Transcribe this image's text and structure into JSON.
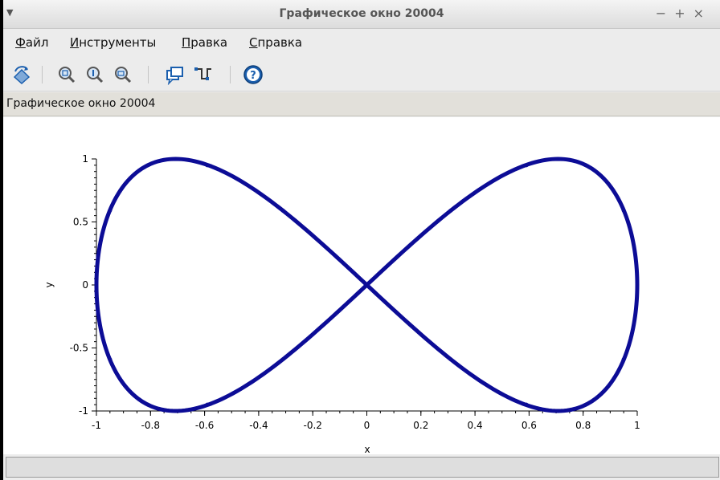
{
  "window": {
    "title": "Графическое окно 20004"
  },
  "menu": {
    "items": [
      "Файл",
      "Инструменты",
      "Правка",
      "Справка"
    ]
  },
  "toolbar": {
    "icons": [
      "rotate-icon",
      "zoom-area-icon",
      "zoom-reset-icon",
      "zoom-out-icon",
      "datatip-icon",
      "edit-curve-icon",
      "help-icon"
    ]
  },
  "infobar": {
    "text": "Графическое окно 20004"
  },
  "colors": {
    "curve": "#0c0c96",
    "accent": "#1b5fae"
  },
  "chart_data": {
    "type": "line",
    "title": "",
    "xlabel": "x",
    "ylabel": "y",
    "xlim": [
      -1,
      1
    ],
    "ylim": [
      -1,
      1
    ],
    "xticks": [
      "-1",
      "-0.8",
      "-0.6",
      "-0.4",
      "-0.2",
      "0",
      "0.2",
      "0.4",
      "0.6",
      "0.8",
      "1"
    ],
    "yticks": [
      "1",
      "0.5",
      "0",
      "-0.5",
      "-1"
    ],
    "grid": false,
    "series": [
      {
        "x": [
          0,
          0.31,
          0.59,
          0.81,
          0.95,
          1,
          0.95,
          0.81,
          0.59,
          0.31,
          0,
          -0.31,
          -0.59,
          -0.81,
          -0.95,
          -1,
          -0.95,
          -0.81,
          -0.59,
          -0.31,
          0
        ],
        "y": [
          0,
          0.59,
          0.95,
          0.95,
          0.59,
          0,
          -0.59,
          -0.95,
          -0.95,
          -0.59,
          0,
          0.59,
          0.95,
          0.95,
          0.59,
          0,
          -0.59,
          -0.95,
          -0.95,
          -0.59,
          0
        ]
      }
    ]
  }
}
